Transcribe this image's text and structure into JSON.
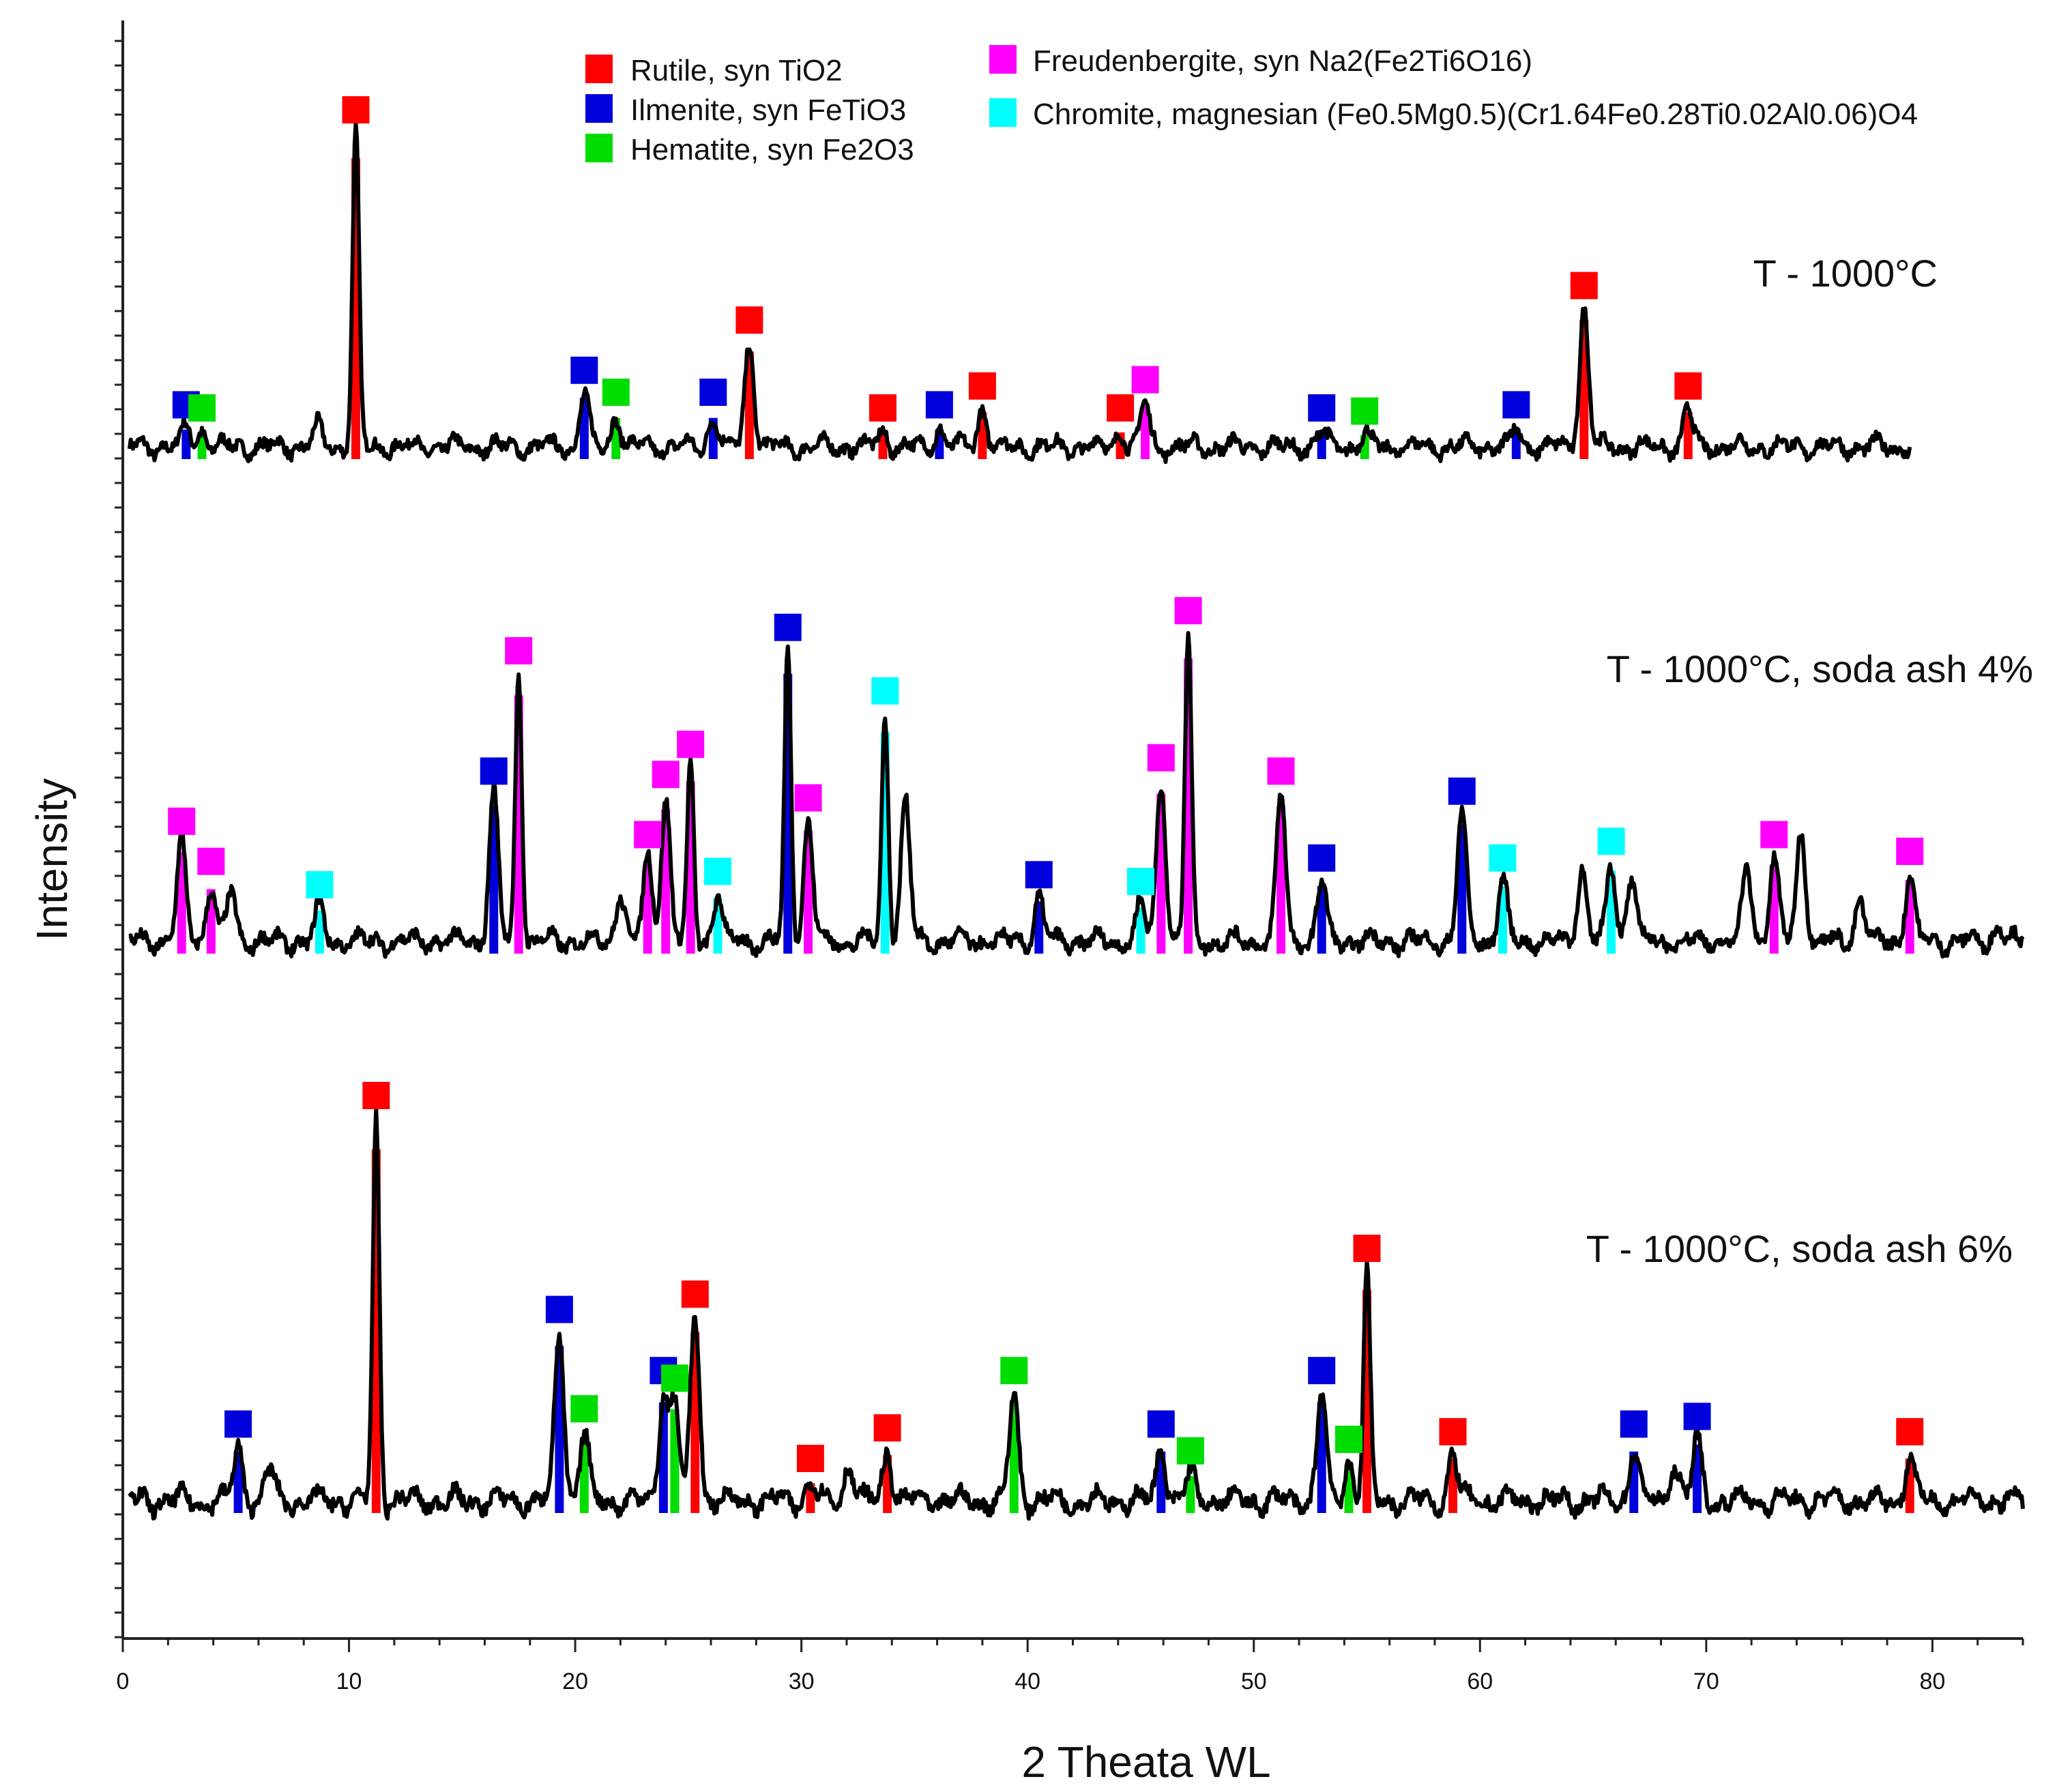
{
  "colors": {
    "rutile": "#ff0000",
    "ilmenite": "#0000dd",
    "hematite": "#00dd00",
    "freudenbergite": "#ff00ff",
    "chromite": "#00ffff",
    "trace": "#000000"
  },
  "chart_data": {
    "type": "line",
    "title": "",
    "xlabel": "2 Theata WL",
    "ylabel": "Intensity",
    "xlim": [
      0,
      84
    ],
    "xticks": [
      "0",
      "10",
      "20",
      "30",
      "40",
      "50",
      "60",
      "70",
      "80"
    ],
    "legend": [
      {
        "key": "rutile",
        "label": "Rutile, syn TiO2"
      },
      {
        "key": "ilmenite",
        "label": "Ilmenite, syn FeTiO3"
      },
      {
        "key": "hematite",
        "label": "Hematite, syn Fe2O3"
      },
      {
        "key": "freudenbergite",
        "label": "Freudenbergite, syn Na2(Fe2Ti6O16)"
      },
      {
        "key": "chromite",
        "label": "Chromite, magnesian (Fe0.5Mg0.5)(Cr1.64Fe0.28Ti0.02Al0.06)O4"
      }
    ],
    "series": [
      {
        "name": "T - 1000°C",
        "end": 79,
        "peaks": [
          {
            "x": 2.8,
            "h": 0.06,
            "p": "ilmenite"
          },
          {
            "x": 3.5,
            "h": 0.05,
            "p": "hematite"
          },
          {
            "x": 8.6,
            "h": 0.06,
            "p": null
          },
          {
            "x": 10.3,
            "h": 1.0,
            "p": "rutile"
          },
          {
            "x": 20.4,
            "h": 0.17,
            "p": "ilmenite"
          },
          {
            "x": 21.8,
            "h": 0.1,
            "p": "hematite"
          },
          {
            "x": 26.1,
            "h": 0.1,
            "p": "ilmenite"
          },
          {
            "x": 27.7,
            "h": 0.33,
            "p": "rutile"
          },
          {
            "x": 33.6,
            "h": 0.05,
            "p": "rutile"
          },
          {
            "x": 36.1,
            "h": 0.06,
            "p": "ilmenite"
          },
          {
            "x": 38.0,
            "h": 0.12,
            "p": "rutile"
          },
          {
            "x": 44.1,
            "h": 0.05,
            "p": "rutile"
          },
          {
            "x": 45.2,
            "h": 0.14,
            "p": "freudenbergite"
          },
          {
            "x": 53.0,
            "h": 0.05,
            "p": "ilmenite"
          },
          {
            "x": 54.9,
            "h": 0.04,
            "p": "hematite"
          },
          {
            "x": 61.6,
            "h": 0.06,
            "p": "ilmenite"
          },
          {
            "x": 64.6,
            "h": 0.44,
            "p": "rutile"
          },
          {
            "x": 69.2,
            "h": 0.12,
            "p": "rutile"
          }
        ]
      },
      {
        "name": "T - 1000°C, soda ash 4%",
        "end": 84,
        "peaks": [
          {
            "x": 2.6,
            "h": 0.29,
            "p": "freudenbergite"
          },
          {
            "x": 3.9,
            "h": 0.17,
            "p": "freudenbergite"
          },
          {
            "x": 4.8,
            "h": 0.15,
            "p": null
          },
          {
            "x": 8.7,
            "h": 0.1,
            "p": "chromite"
          },
          {
            "x": 16.4,
            "h": 0.44,
            "p": "ilmenite"
          },
          {
            "x": 17.5,
            "h": 0.8,
            "p": "freudenbergite"
          },
          {
            "x": 22.0,
            "h": 0.15,
            "p": null
          },
          {
            "x": 23.2,
            "h": 0.25,
            "p": "freudenbergite"
          },
          {
            "x": 24.0,
            "h": 0.43,
            "p": "freudenbergite"
          },
          {
            "x": 25.1,
            "h": 0.52,
            "p": "freudenbergite"
          },
          {
            "x": 26.3,
            "h": 0.14,
            "p": "chromite"
          },
          {
            "x": 29.4,
            "h": 0.87,
            "p": "ilmenite"
          },
          {
            "x": 30.3,
            "h": 0.36,
            "p": "freudenbergite"
          },
          {
            "x": 33.7,
            "h": 0.68,
            "p": "chromite"
          },
          {
            "x": 34.6,
            "h": 0.42,
            "p": null
          },
          {
            "x": 40.5,
            "h": 0.13,
            "p": "ilmenite"
          },
          {
            "x": 45.0,
            "h": 0.11,
            "p": "chromite"
          },
          {
            "x": 45.9,
            "h": 0.48,
            "p": "freudenbergite"
          },
          {
            "x": 47.1,
            "h": 0.92,
            "p": "freudenbergite"
          },
          {
            "x": 51.2,
            "h": 0.44,
            "p": "freudenbergite"
          },
          {
            "x": 53.0,
            "h": 0.18,
            "p": "ilmenite"
          },
          {
            "x": 59.2,
            "h": 0.38,
            "p": "ilmenite"
          },
          {
            "x": 61.0,
            "h": 0.18,
            "p": "chromite"
          },
          {
            "x": 64.5,
            "h": 0.22,
            "p": null
          },
          {
            "x": 65.8,
            "h": 0.23,
            "p": "chromite"
          },
          {
            "x": 66.7,
            "h": 0.2,
            "p": null
          },
          {
            "x": 71.8,
            "h": 0.22,
            "p": null
          },
          {
            "x": 73.0,
            "h": 0.25,
            "p": "freudenbergite"
          },
          {
            "x": 74.2,
            "h": 0.33,
            "p": null
          },
          {
            "x": 76.8,
            "h": 0.13,
            "p": null
          },
          {
            "x": 79.0,
            "h": 0.2,
            "p": "freudenbergite"
          },
          {
            "x": 82.9,
            "h": 0.05,
            "p": null
          }
        ]
      },
      {
        "name": "T - 1000°C, soda ash 6%",
        "end": 84,
        "peaks": [
          {
            "x": 5.1,
            "h": 0.14,
            "p": "ilmenite"
          },
          {
            "x": 6.5,
            "h": 0.08,
            "p": null
          },
          {
            "x": 11.2,
            "h": 1.0,
            "p": "rutile"
          },
          {
            "x": 19.3,
            "h": 0.44,
            "p": "ilmenite"
          },
          {
            "x": 20.4,
            "h": 0.18,
            "p": "hematite"
          },
          {
            "x": 23.9,
            "h": 0.28,
            "p": "ilmenite"
          },
          {
            "x": 24.4,
            "h": 0.26,
            "p": "hematite"
          },
          {
            "x": 25.3,
            "h": 0.48,
            "p": "rutile"
          },
          {
            "x": 30.4,
            "h": 0.05,
            "p": "rutile"
          },
          {
            "x": 32.1,
            "h": 0.1,
            "p": null
          },
          {
            "x": 33.8,
            "h": 0.13,
            "p": "rutile"
          },
          {
            "x": 39.4,
            "h": 0.28,
            "p": "hematite"
          },
          {
            "x": 45.9,
            "h": 0.14,
            "p": "ilmenite"
          },
          {
            "x": 47.2,
            "h": 0.07,
            "p": "hematite"
          },
          {
            "x": 53.0,
            "h": 0.28,
            "p": "ilmenite"
          },
          {
            "x": 54.2,
            "h": 0.1,
            "p": "hematite"
          },
          {
            "x": 55.0,
            "h": 0.6,
            "p": "rutile"
          },
          {
            "x": 58.8,
            "h": 0.12,
            "p": "rutile"
          },
          {
            "x": 66.8,
            "h": 0.14,
            "p": "ilmenite"
          },
          {
            "x": 68.6,
            "h": 0.1,
            "p": null
          },
          {
            "x": 69.6,
            "h": 0.16,
            "p": "ilmenite"
          },
          {
            "x": 79.0,
            "h": 0.12,
            "p": "rutile"
          }
        ]
      }
    ]
  }
}
